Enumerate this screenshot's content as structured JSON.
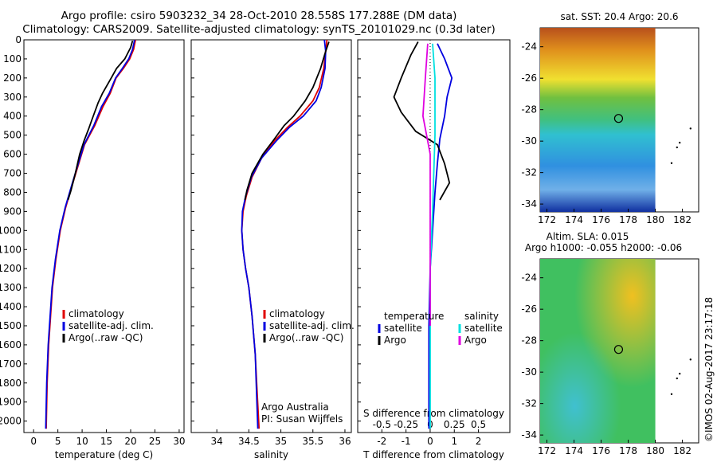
{
  "header": {
    "title_line1": "Argo profile: csiro 5903232_34 28-Oct-2010 28.558S 177.288E (DM data)",
    "title_line2": "Climatology: CARS2009. Satellite-adjusted climatology: synTS_20101029.nc (0.3d later)"
  },
  "credit": "©IMOS 02-Aug-2017 23:17:18",
  "depth_ticks": [
    0,
    100,
    200,
    300,
    400,
    500,
    600,
    700,
    800,
    900,
    1000,
    1100,
    1200,
    1300,
    1400,
    1500,
    1600,
    1700,
    1800,
    1900,
    2000
  ],
  "colors": {
    "climatology": "#e00000",
    "satellite": "#0000e0",
    "argo": "#000000",
    "salinity_satellite": "#00e0e0",
    "salinity_argo": "#e000e0"
  },
  "chart_data": [
    {
      "type": "line",
      "name": "temperature-profile",
      "xlabel": "temperature (deg C)",
      "xticks": [
        0,
        5,
        10,
        15,
        20,
        25,
        30
      ],
      "xlim": [
        -2,
        31
      ],
      "ylim": [
        0,
        2060
      ],
      "legend": [
        "climatology",
        "satellite-adj. clim.",
        "Argo(..raw -QC)"
      ],
      "series": [
        {
          "name": "climatology",
          "points": [
            [
              21,
              0
            ],
            [
              20.6,
              50
            ],
            [
              19.8,
              100
            ],
            [
              18.5,
              150
            ],
            [
              17,
              200
            ],
            [
              15.8,
              280
            ],
            [
              14.3,
              350
            ],
            [
              12.6,
              450
            ],
            [
              10.5,
              550
            ],
            [
              9.3,
              650
            ],
            [
              8.1,
              750
            ],
            [
              6.6,
              880
            ],
            [
              5.5,
              1000
            ],
            [
              4.6,
              1150
            ],
            [
              3.9,
              1300
            ],
            [
              3.5,
              1450
            ],
            [
              3.1,
              1600
            ],
            [
              2.8,
              1800
            ],
            [
              2.6,
              2040
            ]
          ]
        },
        {
          "name": "satellite-adj. clim.",
          "points": [
            [
              20.8,
              0
            ],
            [
              20.4,
              50
            ],
            [
              19.6,
              100
            ],
            [
              18.3,
              150
            ],
            [
              16.9,
              200
            ],
            [
              15.6,
              280
            ],
            [
              14,
              350
            ],
            [
              12.4,
              450
            ],
            [
              10.4,
              550
            ],
            [
              9.2,
              650
            ],
            [
              8,
              750
            ],
            [
              6.5,
              880
            ],
            [
              5.4,
              1000
            ],
            [
              4.5,
              1150
            ],
            [
              3.8,
              1300
            ],
            [
              3.4,
              1450
            ],
            [
              3,
              1600
            ],
            [
              2.7,
              1800
            ],
            [
              2.5,
              2040
            ]
          ]
        },
        {
          "name": "Argo(..raw -QC)",
          "points": [
            [
              20.4,
              5
            ],
            [
              20,
              40
            ],
            [
              18.8,
              100
            ],
            [
              17.1,
              150
            ],
            [
              16,
              200
            ],
            [
              14.2,
              280
            ],
            [
              13.3,
              330
            ],
            [
              12,
              420
            ],
            [
              11.3,
              470
            ],
            [
              10.4,
              530
            ],
            [
              9.5,
              600
            ],
            [
              8.6,
              700
            ],
            [
              7.7,
              790
            ],
            [
              7.1,
              840
            ]
          ]
        }
      ]
    },
    {
      "type": "line",
      "name": "salinity-profile",
      "xlabel": "salinity",
      "xticks": [
        34,
        34.5,
        35,
        35.5,
        36
      ],
      "xlim": [
        33.6,
        36.1
      ],
      "ylim": [
        0,
        2060
      ],
      "legend": [
        "climatology",
        "satellite-adj. clim.",
        "Argo(..raw -QC)"
      ],
      "annotation_line1": "Argo Australia",
      "annotation_line2": "PI: Susan Wijffels",
      "series": [
        {
          "name": "climatology",
          "points": [
            [
              35.72,
              0
            ],
            [
              35.7,
              60
            ],
            [
              35.67,
              150
            ],
            [
              35.6,
              250
            ],
            [
              35.5,
              320
            ],
            [
              35.3,
              400
            ],
            [
              35.1,
              460
            ],
            [
              34.9,
              530
            ],
            [
              34.7,
              620
            ],
            [
              34.55,
              720
            ],
            [
              34.46,
              820
            ],
            [
              34.41,
              900
            ],
            [
              34.39,
              1000
            ],
            [
              34.41,
              1100
            ],
            [
              34.45,
              1200
            ],
            [
              34.5,
              1300
            ],
            [
              34.55,
              1450
            ],
            [
              34.6,
              1650
            ],
            [
              34.63,
              1850
            ],
            [
              34.66,
              2040
            ]
          ]
        },
        {
          "name": "satellite-adj. clim.",
          "points": [
            [
              35.68,
              0
            ],
            [
              35.7,
              60
            ],
            [
              35.69,
              150
            ],
            [
              35.63,
              250
            ],
            [
              35.55,
              320
            ],
            [
              35.35,
              400
            ],
            [
              35.13,
              460
            ],
            [
              34.93,
              530
            ],
            [
              34.7,
              620
            ],
            [
              34.54,
              720
            ],
            [
              34.45,
              820
            ],
            [
              34.4,
              900
            ],
            [
              34.39,
              1000
            ],
            [
              34.41,
              1100
            ],
            [
              34.45,
              1200
            ],
            [
              34.5,
              1300
            ],
            [
              34.55,
              1450
            ],
            [
              34.6,
              1650
            ],
            [
              34.62,
              1850
            ],
            [
              34.64,
              2040
            ]
          ]
        },
        {
          "name": "Argo(..raw -QC)",
          "points": [
            [
              35.75,
              10
            ],
            [
              35.7,
              60
            ],
            [
              35.62,
              150
            ],
            [
              35.5,
              250
            ],
            [
              35.38,
              320
            ],
            [
              35.2,
              400
            ],
            [
              35.05,
              450
            ],
            [
              34.9,
              520
            ],
            [
              34.72,
              600
            ],
            [
              34.55,
              700
            ],
            [
              34.47,
              790
            ],
            [
              34.44,
              840
            ]
          ]
        }
      ]
    },
    {
      "type": "line",
      "name": "difference-profile",
      "xlabel": "T difference from climatology",
      "xlabel_top": "S difference from climatology",
      "xticks": [
        -2,
        -1,
        0,
        1,
        2
      ],
      "xticks_top": [
        "-0.5",
        "-0.25",
        "0",
        "0.25",
        "0.5"
      ],
      "xlim": [
        -3,
        3.3
      ],
      "ylim": [
        0,
        2060
      ],
      "legend_temperature": [
        "temperature",
        "satellite",
        "Argo"
      ],
      "legend_salinity": [
        "salinity",
        "satellite",
        "Argo"
      ],
      "series": [
        {
          "name": "temperature satellite",
          "points": [
            [
              0.3,
              20
            ],
            [
              0.6,
              100
            ],
            [
              0.9,
              200
            ],
            [
              0.7,
              300
            ],
            [
              0.6,
              400
            ],
            [
              0.4,
              520
            ],
            [
              0.3,
              650
            ],
            [
              0.2,
              800
            ],
            [
              0.1,
              1000
            ],
            [
              0,
              1200
            ],
            [
              -0.05,
              1500
            ],
            [
              -0.05,
              1800
            ],
            [
              -0.05,
              2040
            ]
          ]
        },
        {
          "name": "temperature Argo",
          "points": [
            [
              -0.5,
              10
            ],
            [
              -0.8,
              80
            ],
            [
              -1.2,
              200
            ],
            [
              -1.5,
              300
            ],
            [
              -1.2,
              380
            ],
            [
              -0.6,
              480
            ],
            [
              0.3,
              550
            ],
            [
              0.6,
              650
            ],
            [
              0.8,
              750
            ],
            [
              0.4,
              840
            ]
          ]
        },
        {
          "name": "salinity satellite",
          "points": [
            [
              0.1,
              20
            ],
            [
              0.2,
              200
            ],
            [
              0.2,
              500
            ],
            [
              0.1,
              900
            ],
            [
              0,
              1200
            ],
            [
              0,
              2040
            ]
          ]
        },
        {
          "name": "salinity Argo",
          "points": [
            [
              -0.1,
              20
            ],
            [
              -0.2,
              200
            ],
            [
              -0.3,
              400
            ],
            [
              0,
              600
            ],
            [
              0,
              1500
            ]
          ]
        }
      ]
    },
    {
      "type": "heatmap",
      "name": "sst-map",
      "title": "sat. SST: 20.4 Argo: 20.6",
      "xticks": [
        172,
        174,
        176,
        178,
        180,
        182
      ],
      "yticks": [
        -24,
        -26,
        -28,
        -30,
        -32,
        -34
      ],
      "xlim": [
        171.5,
        183.2
      ],
      "ylim": [
        -34.5,
        -22.8
      ]
    },
    {
      "type": "heatmap",
      "name": "sla-map",
      "title_line1": "Altim. SLA: 0.015",
      "title_line2": "Argo h1000: -0.055 h2000: -0.06",
      "xticks": [
        172,
        174,
        176,
        178,
        180,
        182
      ],
      "yticks": [
        -24,
        -26,
        -28,
        -30,
        -32,
        -34
      ],
      "xlim": [
        171.5,
        183.2
      ],
      "ylim": [
        -34.5,
        -22.8
      ]
    }
  ]
}
